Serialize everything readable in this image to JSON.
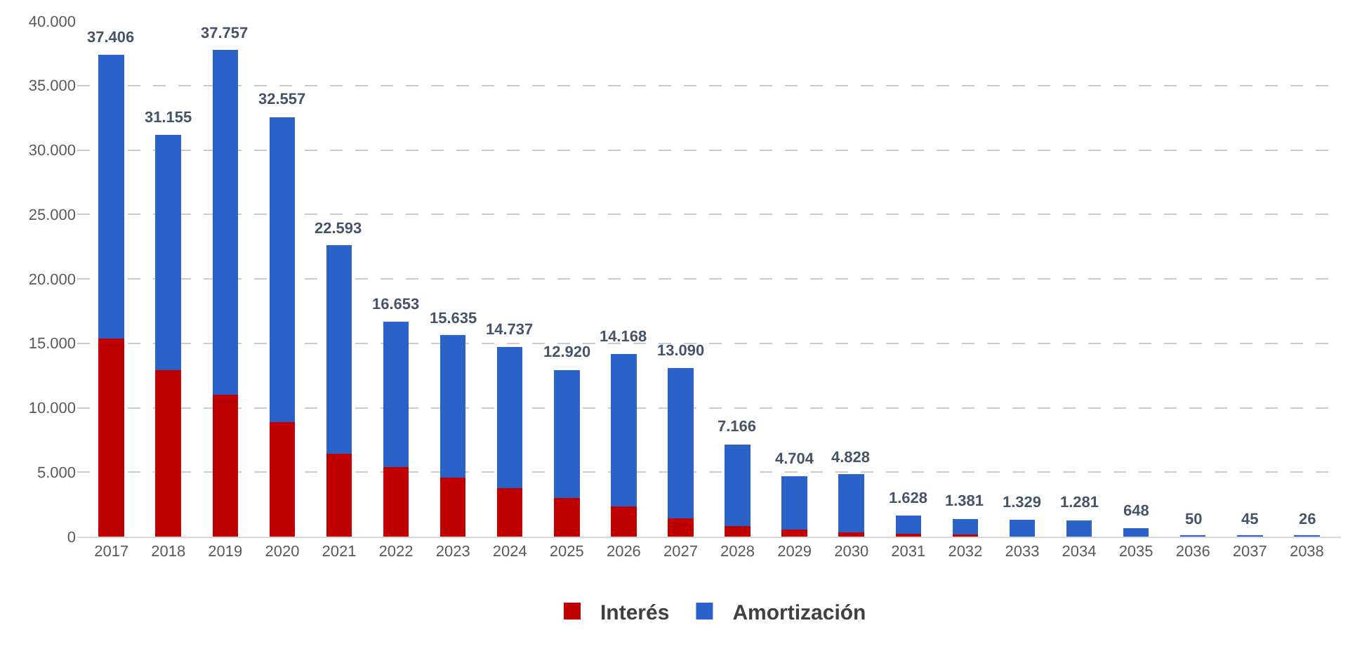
{
  "chart_data": {
    "type": "bar",
    "stacked": true,
    "categories": [
      "2017",
      "2018",
      "2019",
      "2020",
      "2021",
      "2022",
      "2023",
      "2024",
      "2025",
      "2026",
      "2027",
      "2028",
      "2029",
      "2030",
      "2031",
      "2032",
      "2033",
      "2034",
      "2035",
      "2036",
      "2037",
      "2038"
    ],
    "series": [
      {
        "name": "Interés",
        "color": "#c00000",
        "values": [
          15350,
          12900,
          11020,
          8870,
          6450,
          5380,
          4570,
          3760,
          3020,
          2350,
          1410,
          810,
          540,
          340,
          200,
          150,
          0,
          0,
          0,
          0,
          0,
          0
        ]
      },
      {
        "name": "Amortización",
        "color": "#2b62c9",
        "values": [
          22056,
          18255,
          26737,
          23687,
          16143,
          11273,
          11065,
          10977,
          9900,
          11818,
          11680,
          6356,
          4164,
          4488,
          1428,
          1231,
          1329,
          1281,
          648,
          50,
          45,
          26
        ]
      }
    ],
    "totals": [
      "37.406",
      "31.155",
      "37.757",
      "32.557",
      "22.593",
      "16.653",
      "15.635",
      "14.737",
      "12.920",
      "14.168",
      "13.090",
      "7.166",
      "4.704",
      "4.828",
      "1.628",
      "1.381",
      "1.329",
      "1.281",
      "648",
      "50",
      "45",
      "26"
    ],
    "ylim": [
      0,
      40000
    ],
    "yticks": [
      0,
      {
        "value": 5000,
        "label": "5.000"
      },
      {
        "value": 10000,
        "label": "10.000"
      },
      {
        "value": 15000,
        "label": "15.000"
      },
      {
        "value": 20000,
        "label": "20.000"
      },
      {
        "value": 25000,
        "label": "25.000"
      },
      {
        "value": 30000,
        "label": "30.000"
      },
      {
        "value": 35000,
        "label": "35.000"
      },
      {
        "value": 40000,
        "label": "40.000"
      }
    ],
    "grid": "y",
    "legend": "bottom"
  }
}
